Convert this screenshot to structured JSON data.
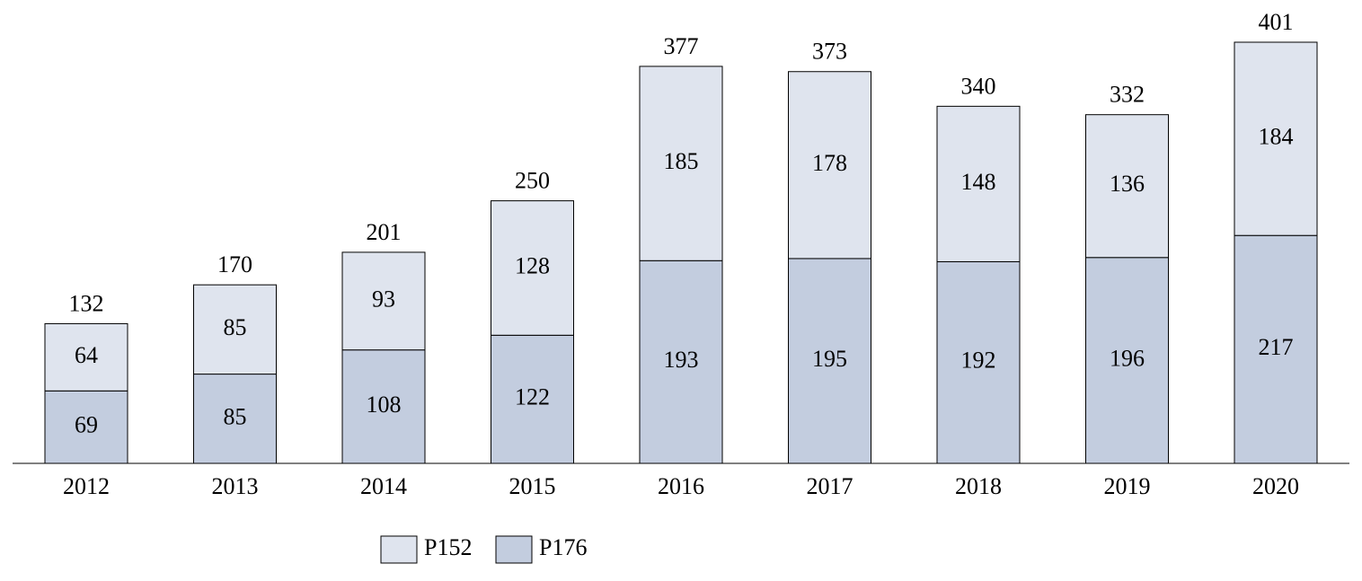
{
  "chart_data": {
    "type": "stacked_bar",
    "categories": [
      "2012",
      "2013",
      "2014",
      "2015",
      "2016",
      "2017",
      "2018",
      "2019",
      "2020"
    ],
    "series": [
      {
        "name": "P152",
        "color": "#dfe4ee",
        "values": [
          64,
          85,
          93,
          128,
          185,
          178,
          148,
          136,
          184
        ]
      },
      {
        "name": "P176",
        "color": "#c3cddf",
        "values": [
          69,
          85,
          108,
          122,
          193,
          195,
          192,
          196,
          217
        ]
      }
    ],
    "totals": [
      132,
      170,
      201,
      250,
      377,
      373,
      340,
      332,
      401
    ]
  }
}
